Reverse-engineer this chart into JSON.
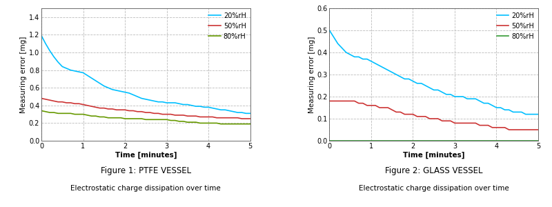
{
  "fig1": {
    "title_bold": "Figure 1: PTFE VESSEL",
    "title_sub": "Electrostatic charge dissipation over time",
    "xlabel": "Time [minutes]",
    "ylabel": "Measuring error [mg]",
    "xlim": [
      0,
      5
    ],
    "ylim": [
      0,
      1.5
    ],
    "yticks": [
      0,
      0.2,
      0.4,
      0.6,
      0.8,
      1.0,
      1.2,
      1.4
    ],
    "xticks": [
      0,
      1,
      2,
      3,
      4,
      5
    ],
    "series": {
      "20%rH": {
        "color": "#00BFFF",
        "x": [
          0,
          0.1,
          0.2,
          0.3,
          0.4,
          0.5,
          0.6,
          0.7,
          0.8,
          0.9,
          1.0,
          1.1,
          1.2,
          1.3,
          1.4,
          1.5,
          1.6,
          1.7,
          1.8,
          1.9,
          2.0,
          2.1,
          2.2,
          2.3,
          2.4,
          2.5,
          2.6,
          2.7,
          2.8,
          2.9,
          3.0,
          3.1,
          3.2,
          3.3,
          3.4,
          3.5,
          3.6,
          3.7,
          3.8,
          3.9,
          4.0,
          4.1,
          4.2,
          4.3,
          4.4,
          4.5,
          4.6,
          4.7,
          4.8,
          4.9,
          5.0
        ],
        "y": [
          1.19,
          1.1,
          1.02,
          0.95,
          0.89,
          0.84,
          0.82,
          0.8,
          0.79,
          0.78,
          0.77,
          0.74,
          0.71,
          0.68,
          0.65,
          0.62,
          0.6,
          0.58,
          0.57,
          0.56,
          0.55,
          0.54,
          0.52,
          0.5,
          0.48,
          0.47,
          0.46,
          0.45,
          0.44,
          0.44,
          0.43,
          0.43,
          0.43,
          0.42,
          0.41,
          0.41,
          0.4,
          0.39,
          0.39,
          0.38,
          0.38,
          0.37,
          0.36,
          0.35,
          0.35,
          0.34,
          0.33,
          0.32,
          0.32,
          0.31,
          0.31
        ]
      },
      "50%rH": {
        "color": "#CC3333",
        "x": [
          0,
          0.1,
          0.2,
          0.3,
          0.4,
          0.5,
          0.6,
          0.7,
          0.8,
          0.9,
          1.0,
          1.1,
          1.2,
          1.3,
          1.4,
          1.5,
          1.6,
          1.7,
          1.8,
          1.9,
          2.0,
          2.1,
          2.2,
          2.3,
          2.4,
          2.5,
          2.6,
          2.7,
          2.8,
          2.9,
          3.0,
          3.1,
          3.2,
          3.3,
          3.4,
          3.5,
          3.6,
          3.7,
          3.8,
          3.9,
          4.0,
          4.1,
          4.2,
          4.3,
          4.4,
          4.5,
          4.6,
          4.7,
          4.8,
          4.9,
          5.0
        ],
        "y": [
          0.48,
          0.47,
          0.46,
          0.45,
          0.44,
          0.44,
          0.43,
          0.43,
          0.42,
          0.42,
          0.41,
          0.4,
          0.39,
          0.38,
          0.37,
          0.37,
          0.36,
          0.36,
          0.35,
          0.35,
          0.35,
          0.34,
          0.34,
          0.33,
          0.33,
          0.32,
          0.32,
          0.31,
          0.31,
          0.3,
          0.3,
          0.3,
          0.29,
          0.29,
          0.29,
          0.28,
          0.28,
          0.28,
          0.27,
          0.27,
          0.27,
          0.27,
          0.26,
          0.26,
          0.26,
          0.26,
          0.26,
          0.26,
          0.25,
          0.25,
          0.25
        ]
      },
      "80%rH": {
        "color": "#669900",
        "x": [
          0,
          0.1,
          0.2,
          0.3,
          0.4,
          0.5,
          0.6,
          0.7,
          0.8,
          0.9,
          1.0,
          1.1,
          1.2,
          1.3,
          1.4,
          1.5,
          1.6,
          1.7,
          1.8,
          1.9,
          2.0,
          2.1,
          2.2,
          2.3,
          2.4,
          2.5,
          2.6,
          2.7,
          2.8,
          2.9,
          3.0,
          3.1,
          3.2,
          3.3,
          3.4,
          3.5,
          3.6,
          3.7,
          3.8,
          3.9,
          4.0,
          4.1,
          4.2,
          4.3,
          4.4,
          4.5,
          4.6,
          4.7,
          4.8,
          4.9,
          5.0
        ],
        "y": [
          0.34,
          0.33,
          0.32,
          0.32,
          0.31,
          0.31,
          0.31,
          0.31,
          0.3,
          0.3,
          0.3,
          0.29,
          0.28,
          0.28,
          0.27,
          0.27,
          0.26,
          0.26,
          0.26,
          0.26,
          0.25,
          0.25,
          0.25,
          0.25,
          0.25,
          0.24,
          0.24,
          0.24,
          0.24,
          0.24,
          0.24,
          0.23,
          0.23,
          0.22,
          0.22,
          0.21,
          0.21,
          0.21,
          0.2,
          0.2,
          0.2,
          0.2,
          0.2,
          0.19,
          0.19,
          0.19,
          0.19,
          0.19,
          0.19,
          0.19,
          0.19
        ]
      }
    }
  },
  "fig2": {
    "title_bold": "Figure 2: GLASS VESSEL",
    "title_sub": "Electrostatic charge dissipation over time",
    "xlabel": "Time [minutes]",
    "ylabel": "Measuring error [mg]",
    "xlim": [
      0,
      5
    ],
    "ylim": [
      0,
      0.6
    ],
    "yticks": [
      0,
      0.1,
      0.2,
      0.3,
      0.4,
      0.5,
      0.6
    ],
    "xticks": [
      0,
      1,
      2,
      3,
      4,
      5
    ],
    "series": {
      "20%rH": {
        "color": "#00BFFF",
        "x": [
          0,
          0.1,
          0.2,
          0.3,
          0.4,
          0.5,
          0.6,
          0.7,
          0.8,
          0.9,
          1.0,
          1.1,
          1.2,
          1.3,
          1.4,
          1.5,
          1.6,
          1.7,
          1.8,
          1.9,
          2.0,
          2.1,
          2.2,
          2.3,
          2.4,
          2.5,
          2.6,
          2.7,
          2.8,
          2.9,
          3.0,
          3.1,
          3.2,
          3.3,
          3.4,
          3.5,
          3.6,
          3.7,
          3.8,
          3.9,
          4.0,
          4.1,
          4.2,
          4.3,
          4.4,
          4.5,
          4.6,
          4.7,
          4.8,
          4.9,
          5.0
        ],
        "y": [
          0.5,
          0.47,
          0.44,
          0.42,
          0.4,
          0.39,
          0.38,
          0.38,
          0.37,
          0.37,
          0.36,
          0.35,
          0.34,
          0.33,
          0.32,
          0.31,
          0.3,
          0.29,
          0.28,
          0.28,
          0.27,
          0.26,
          0.26,
          0.25,
          0.24,
          0.23,
          0.23,
          0.22,
          0.21,
          0.21,
          0.2,
          0.2,
          0.2,
          0.19,
          0.19,
          0.19,
          0.18,
          0.17,
          0.17,
          0.16,
          0.15,
          0.15,
          0.14,
          0.14,
          0.13,
          0.13,
          0.13,
          0.12,
          0.12,
          0.12,
          0.12
        ]
      },
      "50%rH": {
        "color": "#CC3333",
        "x": [
          0,
          0.1,
          0.2,
          0.3,
          0.4,
          0.5,
          0.6,
          0.7,
          0.8,
          0.9,
          1.0,
          1.1,
          1.2,
          1.3,
          1.4,
          1.5,
          1.6,
          1.7,
          1.8,
          1.9,
          2.0,
          2.1,
          2.2,
          2.3,
          2.4,
          2.5,
          2.6,
          2.7,
          2.8,
          2.9,
          3.0,
          3.1,
          3.2,
          3.3,
          3.4,
          3.5,
          3.6,
          3.7,
          3.8,
          3.9,
          4.0,
          4.1,
          4.2,
          4.3,
          4.4,
          4.5,
          4.6,
          4.7,
          4.8,
          4.9,
          5.0
        ],
        "y": [
          0.18,
          0.18,
          0.18,
          0.18,
          0.18,
          0.18,
          0.18,
          0.17,
          0.17,
          0.16,
          0.16,
          0.16,
          0.15,
          0.15,
          0.15,
          0.14,
          0.13,
          0.13,
          0.12,
          0.12,
          0.12,
          0.11,
          0.11,
          0.11,
          0.1,
          0.1,
          0.1,
          0.09,
          0.09,
          0.09,
          0.08,
          0.08,
          0.08,
          0.08,
          0.08,
          0.08,
          0.07,
          0.07,
          0.07,
          0.06,
          0.06,
          0.06,
          0.06,
          0.05,
          0.05,
          0.05,
          0.05,
          0.05,
          0.05,
          0.05,
          0.05
        ]
      },
      "80%rH": {
        "color": "#339933",
        "x": [
          0,
          0.1,
          0.2,
          0.3,
          0.4,
          0.5,
          0.6,
          0.7,
          0.8,
          0.9,
          1.0,
          1.1,
          1.2,
          1.3,
          1.4,
          1.5,
          1.6,
          1.7,
          1.8,
          1.9,
          2.0,
          2.1,
          2.2,
          2.3,
          2.4,
          2.5,
          2.6,
          2.7,
          2.8,
          2.9,
          3.0,
          3.1,
          3.2,
          3.3,
          3.4,
          3.5,
          3.6,
          3.7,
          3.8,
          3.9,
          4.0,
          4.1,
          4.2,
          4.3,
          4.4,
          4.5,
          4.6,
          4.7,
          4.8,
          4.9,
          5.0
        ],
        "y": [
          0.0,
          0.0,
          0.0,
          0.0,
          0.0,
          0.0,
          0.0,
          0.0,
          0.0,
          0.0,
          0.0,
          0.0,
          0.0,
          0.0,
          0.0,
          0.0,
          0.0,
          0.0,
          0.0,
          0.0,
          0.0,
          0.0,
          0.0,
          0.0,
          0.0,
          0.0,
          0.0,
          0.0,
          0.0,
          0.0,
          0.0,
          0.0,
          0.0,
          0.0,
          0.0,
          0.0,
          0.0,
          0.0,
          0.0,
          0.0,
          0.0,
          0.0,
          0.0,
          0.0,
          0.0,
          0.0,
          0.0,
          0.0,
          0.0,
          0.0,
          0.0
        ]
      }
    }
  },
  "legend_labels": [
    "20%rH",
    "50%rH",
    "80%rH"
  ],
  "background_color": "#ffffff",
  "grid_color": "#bbbbbb",
  "line_width": 1.2
}
